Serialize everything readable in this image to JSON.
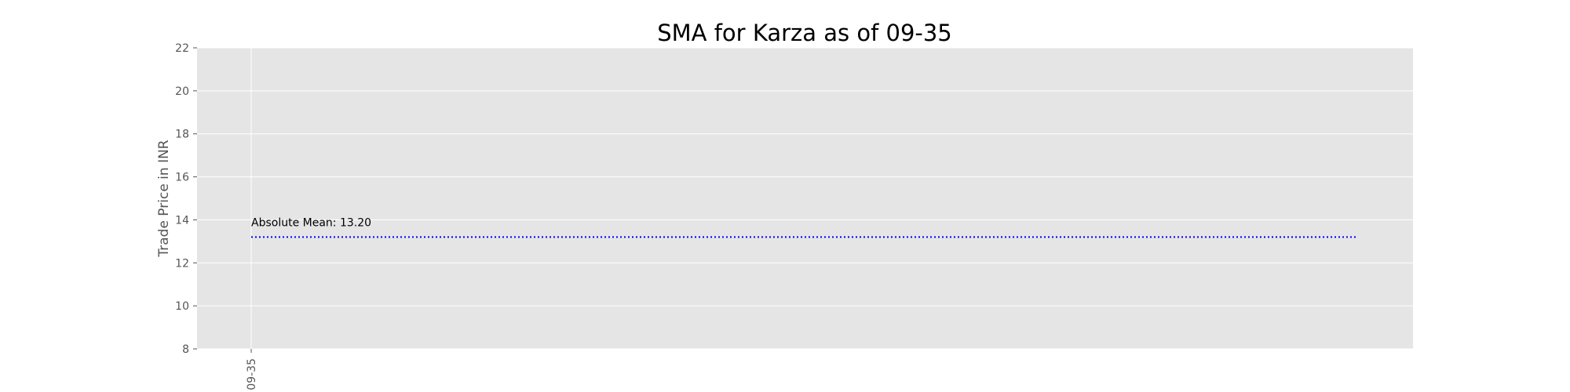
{
  "chart_data": {
    "type": "line",
    "title": "SMA for Karza as of 09-35",
    "xlabel": "",
    "ylabel": "Trade Price in INR",
    "categories": [
      "09-35"
    ],
    "ylim": [
      8,
      22
    ],
    "yticks": [
      8,
      10,
      12,
      14,
      16,
      18,
      20,
      22
    ],
    "grid": true,
    "reference_lines": [
      {
        "label": "Absolute Mean: 13.20",
        "value": 13.2,
        "style": "dotted",
        "color": "#0000ff"
      }
    ],
    "colors": {
      "plot_bg": "#e5e5e5",
      "grid": "#ffffff",
      "mean_line": "#0000ff"
    }
  }
}
